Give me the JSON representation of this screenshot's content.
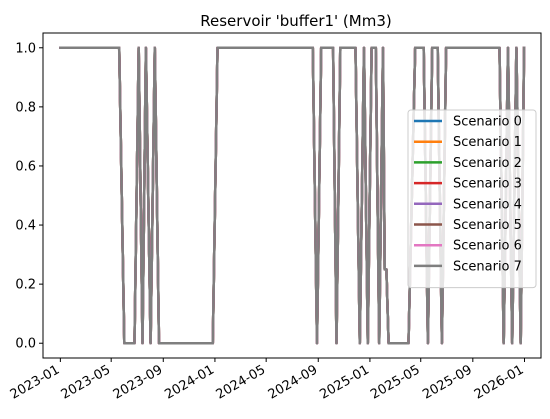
{
  "chart_data": {
    "type": "line",
    "title": "Reservoir 'buffer1' (Mm3)",
    "xlabel": "",
    "ylabel": "",
    "x_axis": "date",
    "xlim": [
      "2022-11-21",
      "2026-02-09"
    ],
    "ylim": [
      -0.05,
      1.05
    ],
    "x_ticks": [
      "2023-01",
      "2023-05",
      "2023-09",
      "2024-01",
      "2024-05",
      "2024-09",
      "2025-01",
      "2025-05",
      "2025-09",
      "2026-01"
    ],
    "y_ticks": [
      "0.0",
      "0.2",
      "0.4",
      "0.6",
      "0.8",
      "1.0"
    ],
    "grid": false,
    "legend_position": "center-right",
    "series": [
      {
        "name": "Scenario 0",
        "color": "#1f77b4"
      },
      {
        "name": "Scenario 1",
        "color": "#ff7f0e"
      },
      {
        "name": "Scenario 2",
        "color": "#2ca02c"
      },
      {
        "name": "Scenario 3",
        "color": "#d62728"
      },
      {
        "name": "Scenario 4",
        "color": "#9467bd"
      },
      {
        "name": "Scenario 5",
        "color": "#8c564b"
      },
      {
        "name": "Scenario 6",
        "color": "#e377c2"
      },
      {
        "name": "Scenario 7",
        "color": "#7f7f7f"
      }
    ],
    "shared_values": {
      "note": "All eight scenario series overlap; the shared trace is shown.",
      "points": [
        [
          "2023-01-01",
          1.0
        ],
        [
          "2023-05-20",
          1.0
        ],
        [
          "2023-06-01",
          0.0
        ],
        [
          "2023-06-25",
          0.0
        ],
        [
          "2023-07-05",
          1.0
        ],
        [
          "2023-07-14",
          0.0
        ],
        [
          "2023-07-22",
          1.0
        ],
        [
          "2023-08-02",
          0.0
        ],
        [
          "2023-08-12",
          1.0
        ],
        [
          "2023-08-22",
          0.0
        ],
        [
          "2023-12-27",
          0.0
        ],
        [
          "2024-01-07",
          1.0
        ],
        [
          "2024-08-19",
          1.0
        ],
        [
          "2024-08-29",
          0.0
        ],
        [
          "2024-09-08",
          1.0
        ],
        [
          "2024-10-06",
          1.0
        ],
        [
          "2024-10-14",
          0.0
        ],
        [
          "2024-10-23",
          1.0
        ],
        [
          "2024-11-28",
          1.0
        ],
        [
          "2024-12-08",
          0.0
        ],
        [
          "2024-12-18",
          1.0
        ],
        [
          "2024-12-27",
          0.0
        ],
        [
          "2025-01-05",
          1.0
        ],
        [
          "2025-01-15",
          1.0
        ],
        [
          "2025-01-23",
          0.0
        ],
        [
          "2025-02-01",
          1.0
        ],
        [
          "2025-02-05",
          0.25
        ],
        [
          "2025-02-09",
          0.25
        ],
        [
          "2025-02-14",
          0.0
        ],
        [
          "2025-04-02",
          0.0
        ],
        [
          "2025-04-18",
          1.0
        ],
        [
          "2025-05-08",
          1.0
        ],
        [
          "2025-05-18",
          0.0
        ],
        [
          "2025-05-28",
          1.0
        ],
        [
          "2025-06-10",
          1.0
        ],
        [
          "2025-06-20",
          0.0
        ],
        [
          "2025-06-30",
          1.0
        ],
        [
          "2025-11-03",
          1.0
        ],
        [
          "2025-11-13",
          0.0
        ],
        [
          "2025-11-23",
          1.0
        ],
        [
          "2025-12-03",
          0.0
        ],
        [
          "2025-12-13",
          1.0
        ],
        [
          "2025-12-23",
          0.0
        ],
        [
          "2025-12-31",
          1.0
        ]
      ]
    }
  }
}
